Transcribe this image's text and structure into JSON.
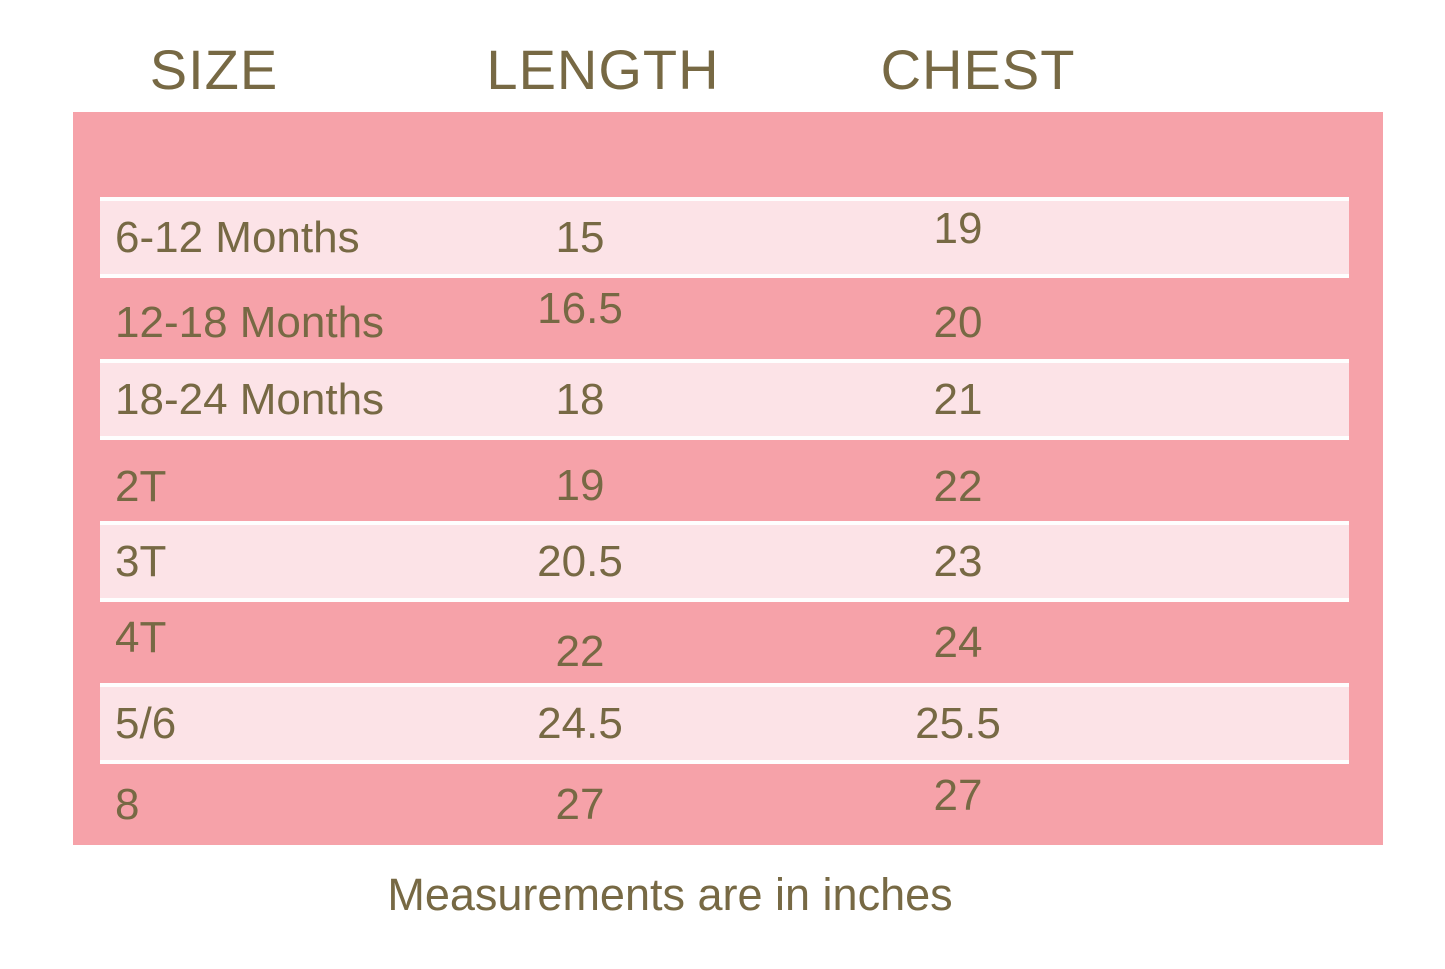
{
  "chart_data": {
    "type": "table",
    "columns": [
      "SIZE",
      "LENGTH",
      "CHEST"
    ],
    "rows": [
      {
        "size": "6-12 Months",
        "length": "15",
        "chest": "19"
      },
      {
        "size": "12-18 Months",
        "length": "16.5",
        "chest": "20"
      },
      {
        "size": "18-24 Months",
        "length": "18",
        "chest": "21"
      },
      {
        "size": "2T",
        "length": "19",
        "chest": "22"
      },
      {
        "size": "3T",
        "length": "20.5",
        "chest": "23"
      },
      {
        "size": "4T",
        "length": "22",
        "chest": "24"
      },
      {
        "size": "5/6",
        "length": "24.5",
        "chest": "25.5"
      },
      {
        "size": "8",
        "length": "27",
        "chest": "27"
      }
    ],
    "note": "Measurements are in inches",
    "units": "inches",
    "layout": {
      "row_striping": "alternating, first row light",
      "legend": "none",
      "grid": "off"
    }
  },
  "colors": {
    "background": "#ffffff",
    "panel_pink": "#f6a2a9",
    "stripe_pink": "#fce3e7",
    "row_separator": "#fefefe",
    "text_olive": "#776944"
  }
}
